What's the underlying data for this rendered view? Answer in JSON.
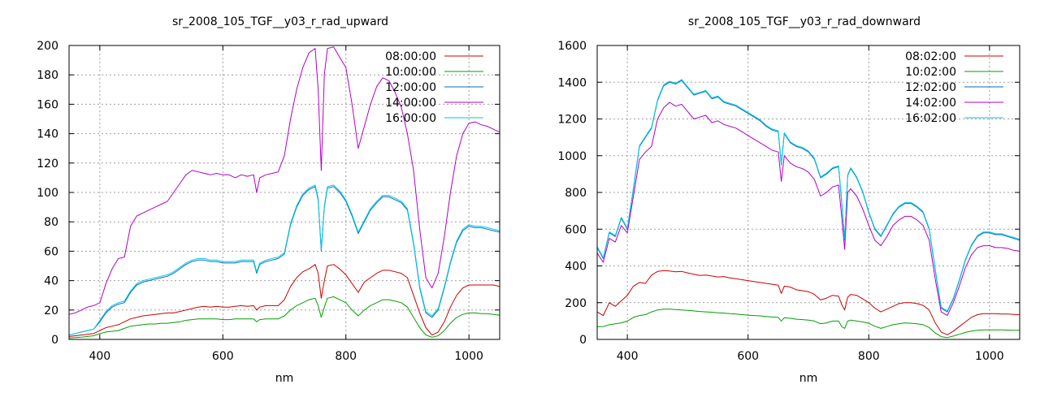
{
  "chart_data": [
    {
      "type": "line",
      "title": "sr_2008_105_TGF__y03_r_rad_upward",
      "xlabel": "nm",
      "ylabel": "",
      "xlim": [
        350,
        1050
      ],
      "ylim": [
        0,
        200
      ],
      "xticks": [
        400,
        600,
        800,
        1000
      ],
      "yticks": [
        0,
        20,
        40,
        60,
        80,
        100,
        120,
        140,
        160,
        180,
        200
      ],
      "grid": true,
      "legend_position": "top-right",
      "x": [
        350,
        360,
        370,
        380,
        390,
        400,
        410,
        420,
        430,
        440,
        450,
        460,
        470,
        480,
        490,
        500,
        510,
        520,
        530,
        540,
        550,
        560,
        570,
        580,
        590,
        600,
        610,
        620,
        630,
        640,
        650,
        655,
        660,
        670,
        680,
        690,
        700,
        710,
        720,
        730,
        740,
        750,
        755,
        760,
        765,
        770,
        780,
        790,
        800,
        810,
        820,
        830,
        840,
        850,
        860,
        870,
        880,
        890,
        900,
        910,
        920,
        930,
        940,
        950,
        960,
        970,
        980,
        990,
        1000,
        1010,
        1020,
        1030,
        1040,
        1050
      ],
      "series": [
        {
          "name": "08:00:00",
          "color": "#cc0000",
          "values": [
            2,
            2.5,
            3,
            3.5,
            4,
            6,
            8,
            9,
            10,
            12,
            14,
            15,
            16,
            16.5,
            17,
            17.5,
            18,
            18,
            19,
            20,
            21,
            22,
            22.5,
            22,
            22.5,
            22,
            22,
            22.5,
            23,
            22.5,
            23,
            20,
            22,
            23,
            23,
            23,
            27,
            36,
            42,
            46,
            48,
            51,
            45,
            28,
            40,
            50,
            51,
            48,
            44,
            38,
            32,
            39,
            42,
            45,
            47,
            47,
            46,
            45,
            42,
            30,
            18,
            8,
            3,
            5,
            12,
            22,
            30,
            35,
            37,
            37,
            37,
            37,
            37,
            36
          ]
        },
        {
          "name": "10:00:00",
          "color": "#00a000",
          "values": [
            1,
            1.2,
            1.5,
            2,
            2.5,
            4,
            5,
            5.5,
            6,
            7.5,
            9,
            9.5,
            10,
            10.5,
            10.5,
            11,
            11,
            11.5,
            12,
            13,
            13.5,
            14,
            14,
            14,
            14,
            13.5,
            13.5,
            14,
            14,
            14,
            14,
            12,
            13.5,
            14,
            14,
            14,
            16,
            20,
            23,
            25,
            27,
            28,
            23,
            15,
            22,
            28,
            29,
            27,
            25,
            20,
            16,
            20,
            23,
            25,
            27,
            27,
            26,
            25,
            22,
            15,
            8,
            3,
            1.5,
            2.5,
            6,
            11,
            15,
            17,
            18,
            18,
            17.5,
            17.5,
            17,
            16.5
          ]
        },
        {
          "name": "12:00:00",
          "color": "#0070c0",
          "values": [
            3,
            4,
            5,
            6,
            7,
            12,
            18,
            22,
            24,
            25,
            32,
            37,
            39,
            40,
            41,
            42,
            43,
            45,
            48,
            51,
            53,
            54,
            54,
            53,
            53,
            52,
            52,
            52,
            53,
            53,
            53,
            45,
            51,
            53,
            54,
            55,
            58,
            78,
            90,
            98,
            102,
            104,
            95,
            60,
            90,
            103,
            104,
            100,
            94,
            84,
            72,
            80,
            88,
            93,
            97,
            97,
            95,
            93,
            88,
            65,
            35,
            18,
            15,
            20,
            35,
            52,
            66,
            74,
            77,
            76,
            76,
            75,
            74,
            73
          ]
        },
        {
          "name": "14:00:00",
          "color": "#b000c8",
          "values": [
            17,
            18,
            20,
            22,
            23,
            25,
            38,
            48,
            55,
            56,
            77,
            84,
            86,
            88,
            90,
            92,
            94,
            100,
            106,
            112,
            115,
            114,
            113,
            112,
            113,
            112,
            112,
            110,
            112,
            111,
            112,
            100,
            110,
            112,
            113,
            114,
            125,
            150,
            170,
            185,
            195,
            198,
            170,
            115,
            180,
            198,
            199,
            192,
            185,
            160,
            130,
            145,
            160,
            172,
            178,
            176,
            168,
            158,
            140,
            115,
            75,
            42,
            35,
            45,
            70,
            100,
            125,
            140,
            147,
            148,
            146,
            145,
            143,
            141
          ]
        },
        {
          "name": "16:00:00",
          "color": "#00c8e8",
          "values": [
            3,
            4,
            5,
            6,
            7,
            13,
            19,
            23,
            25,
            26,
            33,
            38,
            40,
            41,
            42,
            43,
            44,
            46,
            49,
            52,
            54,
            55,
            55,
            54,
            54,
            53,
            53,
            53,
            54,
            54,
            54,
            46,
            52,
            54,
            55,
            56,
            59,
            79,
            91,
            99,
            103,
            105,
            96,
            61,
            91,
            104,
            105,
            101,
            95,
            85,
            73,
            81,
            89,
            94,
            98,
            98,
            96,
            94,
            89,
            66,
            36,
            19,
            16,
            21,
            36,
            53,
            67,
            75,
            78,
            77,
            77,
            76,
            75,
            74
          ]
        }
      ]
    },
    {
      "type": "line",
      "title": "sr_2008_105_TGF__y03_r_rad_downward",
      "xlabel": "nm",
      "ylabel": "",
      "xlim": [
        350,
        1050
      ],
      "ylim": [
        0,
        1600
      ],
      "xticks": [
        400,
        600,
        800,
        1000
      ],
      "yticks": [
        0,
        200,
        400,
        600,
        800,
        1000,
        1200,
        1400,
        1600
      ],
      "grid": true,
      "legend_position": "top-right",
      "x": [
        350,
        360,
        370,
        380,
        390,
        400,
        410,
        420,
        430,
        440,
        450,
        460,
        470,
        480,
        490,
        500,
        510,
        520,
        530,
        540,
        550,
        560,
        570,
        580,
        590,
        600,
        610,
        620,
        630,
        640,
        650,
        655,
        660,
        670,
        680,
        690,
        700,
        710,
        720,
        730,
        740,
        750,
        755,
        760,
        765,
        770,
        780,
        790,
        800,
        810,
        820,
        830,
        840,
        850,
        860,
        870,
        880,
        890,
        900,
        910,
        920,
        930,
        940,
        950,
        960,
        970,
        980,
        990,
        1000,
        1010,
        1020,
        1030,
        1040,
        1050
      ],
      "series": [
        {
          "name": "08:02:00",
          "color": "#cc0000",
          "values": [
            150,
            130,
            200,
            180,
            210,
            240,
            290,
            310,
            305,
            350,
            370,
            375,
            372,
            368,
            370,
            362,
            355,
            348,
            350,
            345,
            340,
            342,
            335,
            330,
            325,
            320,
            315,
            310,
            305,
            300,
            295,
            250,
            290,
            285,
            270,
            265,
            260,
            245,
            215,
            225,
            240,
            235,
            190,
            160,
            230,
            245,
            240,
            220,
            200,
            170,
            150,
            165,
            180,
            195,
            200,
            200,
            195,
            185,
            160,
            90,
            40,
            25,
            45,
            70,
            95,
            120,
            135,
            140,
            140,
            140,
            138,
            138,
            136,
            135
          ]
        },
        {
          "name": "10:02:00",
          "color": "#00a000",
          "values": [
            70,
            70,
            80,
            85,
            90,
            100,
            120,
            130,
            135,
            150,
            160,
            165,
            165,
            162,
            160,
            158,
            155,
            152,
            150,
            148,
            145,
            143,
            140,
            138,
            135,
            132,
            130,
            128,
            125,
            122,
            120,
            100,
            118,
            115,
            110,
            108,
            105,
            100,
            85,
            90,
            100,
            100,
            70,
            60,
            100,
            105,
            100,
            95,
            88,
            72,
            60,
            70,
            80,
            85,
            90,
            88,
            85,
            80,
            65,
            35,
            15,
            10,
            18,
            28,
            38,
            45,
            50,
            52,
            52,
            52,
            52,
            51,
            50,
            50
          ]
        },
        {
          "name": "12:02:00",
          "color": "#0070c0",
          "values": [
            500,
            440,
            580,
            560,
            660,
            600,
            820,
            1050,
            1100,
            1150,
            1300,
            1380,
            1400,
            1390,
            1410,
            1370,
            1330,
            1340,
            1350,
            1310,
            1320,
            1290,
            1280,
            1270,
            1250,
            1230,
            1210,
            1190,
            1160,
            1140,
            1130,
            950,
            1120,
            1070,
            1050,
            1040,
            1020,
            980,
            880,
            900,
            930,
            940,
            750,
            540,
            890,
            930,
            880,
            800,
            690,
            600,
            560,
            620,
            680,
            720,
            740,
            740,
            720,
            690,
            600,
            380,
            170,
            150,
            220,
            320,
            430,
            510,
            560,
            580,
            580,
            570,
            570,
            560,
            550,
            540
          ]
        },
        {
          "name": "14:02:00",
          "color": "#b000c8",
          "values": [
            470,
            420,
            550,
            530,
            620,
            580,
            780,
            980,
            1020,
            1050,
            1200,
            1260,
            1290,
            1270,
            1280,
            1240,
            1200,
            1210,
            1220,
            1180,
            1190,
            1170,
            1160,
            1150,
            1130,
            1110,
            1090,
            1070,
            1050,
            1030,
            1020,
            860,
            1000,
            960,
            940,
            930,
            910,
            870,
            780,
            800,
            830,
            840,
            670,
            490,
            800,
            820,
            780,
            710,
            620,
            540,
            510,
            560,
            620,
            650,
            670,
            670,
            650,
            620,
            540,
            330,
            150,
            130,
            200,
            290,
            390,
            460,
            500,
            510,
            510,
            500,
            500,
            495,
            485,
            480
          ]
        },
        {
          "name": "16:02:00",
          "color": "#00c8e8",
          "values": [
            505,
            445,
            585,
            565,
            665,
            605,
            825,
            1055,
            1105,
            1155,
            1305,
            1385,
            1405,
            1395,
            1415,
            1375,
            1335,
            1345,
            1355,
            1315,
            1325,
            1295,
            1285,
            1275,
            1255,
            1235,
            1215,
            1195,
            1165,
            1145,
            1135,
            955,
            1125,
            1075,
            1055,
            1045,
            1025,
            985,
            885,
            905,
            935,
            945,
            755,
            545,
            895,
            935,
            885,
            805,
            695,
            605,
            565,
            625,
            685,
            725,
            745,
            745,
            725,
            695,
            605,
            385,
            175,
            155,
            225,
            325,
            435,
            515,
            565,
            585,
            585,
            575,
            575,
            565,
            555,
            545
          ]
        }
      ]
    }
  ]
}
